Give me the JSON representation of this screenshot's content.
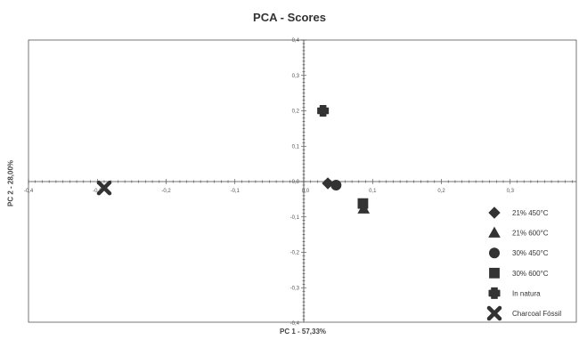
{
  "chart_data": {
    "type": "scatter",
    "title": "PCA - Scores",
    "xlabel": "PC 1 - 57,33%",
    "ylabel": "PC 2 - 28,00%",
    "xlim": [
      -0.4,
      0.4
    ],
    "ylim": [
      -0.4,
      0.4
    ],
    "xticks": [
      -0.4,
      -0.3,
      -0.2,
      -0.1,
      0.0,
      0.1,
      0.2,
      0.3
    ],
    "xtick_labels": [
      "-0,4",
      "-0,3",
      "-0,2",
      "-0,1",
      "0,0",
      "0,1",
      "0,2",
      "0,3"
    ],
    "yticks": [
      0.4,
      0.3,
      0.2,
      0.1,
      0.0,
      -0.1,
      -0.2,
      -0.3,
      -0.4
    ],
    "ytick_labels": [
      "0,4",
      "0,3",
      "0,2",
      "0,1",
      "0,0",
      "-0,1",
      "-0,2",
      "-0,3",
      "-0,4"
    ],
    "grid": false,
    "legend_position": "bottom-right",
    "marker_color": "#333333",
    "series": [
      {
        "name": "21% 450°C",
        "marker": "diamond",
        "points": [
          [
            0.035,
            -0.005
          ]
        ]
      },
      {
        "name": "21% 600°C",
        "marker": "triangle",
        "points": [
          [
            0.087,
            -0.077
          ]
        ]
      },
      {
        "name": "30% 450°C",
        "marker": "circle",
        "points": [
          [
            0.047,
            -0.01
          ]
        ]
      },
      {
        "name": "30% 600°C",
        "marker": "square",
        "points": [
          [
            0.086,
            -0.062
          ]
        ]
      },
      {
        "name": "In natura",
        "marker": "plus",
        "points": [
          [
            0.028,
            0.2
          ]
        ]
      },
      {
        "name": "Charcoal Fóssil",
        "marker": "x",
        "points": [
          [
            -0.29,
            -0.018
          ]
        ]
      }
    ]
  }
}
